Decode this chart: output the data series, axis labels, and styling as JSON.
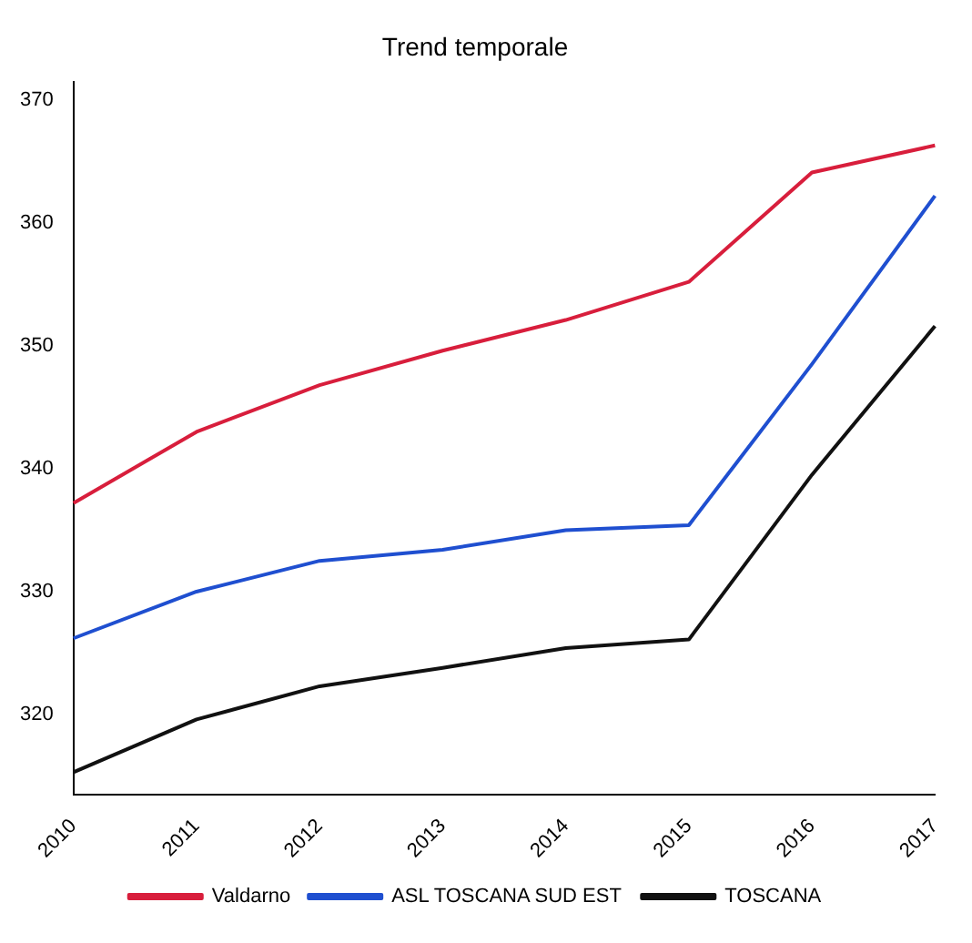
{
  "chart_data": {
    "type": "line",
    "title": "Trend temporale",
    "categories": [
      "2010",
      "2011",
      "2012",
      "2013",
      "2014",
      "2015",
      "2016",
      "2017"
    ],
    "series": [
      {
        "name": "Valdarno",
        "color": "#d81e3c",
        "values": [
          337.2,
          343,
          346.8,
          349.6,
          352.1,
          355.2,
          364.1,
          366.3
        ]
      },
      {
        "name": "ASL TOSCANA SUD EST",
        "color": "#1f4fd0",
        "values": [
          326.2,
          330,
          332.5,
          333.4,
          335,
          335.4,
          348.5,
          362.2
        ]
      },
      {
        "name": "TOSCANA",
        "color": "#111111",
        "values": [
          315.3,
          319.6,
          322.3,
          323.8,
          325.4,
          326.1,
          339.5,
          351.6
        ]
      }
    ],
    "ylim": [
      313.5,
      371.5
    ],
    "yticks": [
      320,
      330,
      340,
      350,
      360,
      370
    ],
    "grid": false,
    "legend": "bottom",
    "marker": "none",
    "line_style": "solid"
  }
}
